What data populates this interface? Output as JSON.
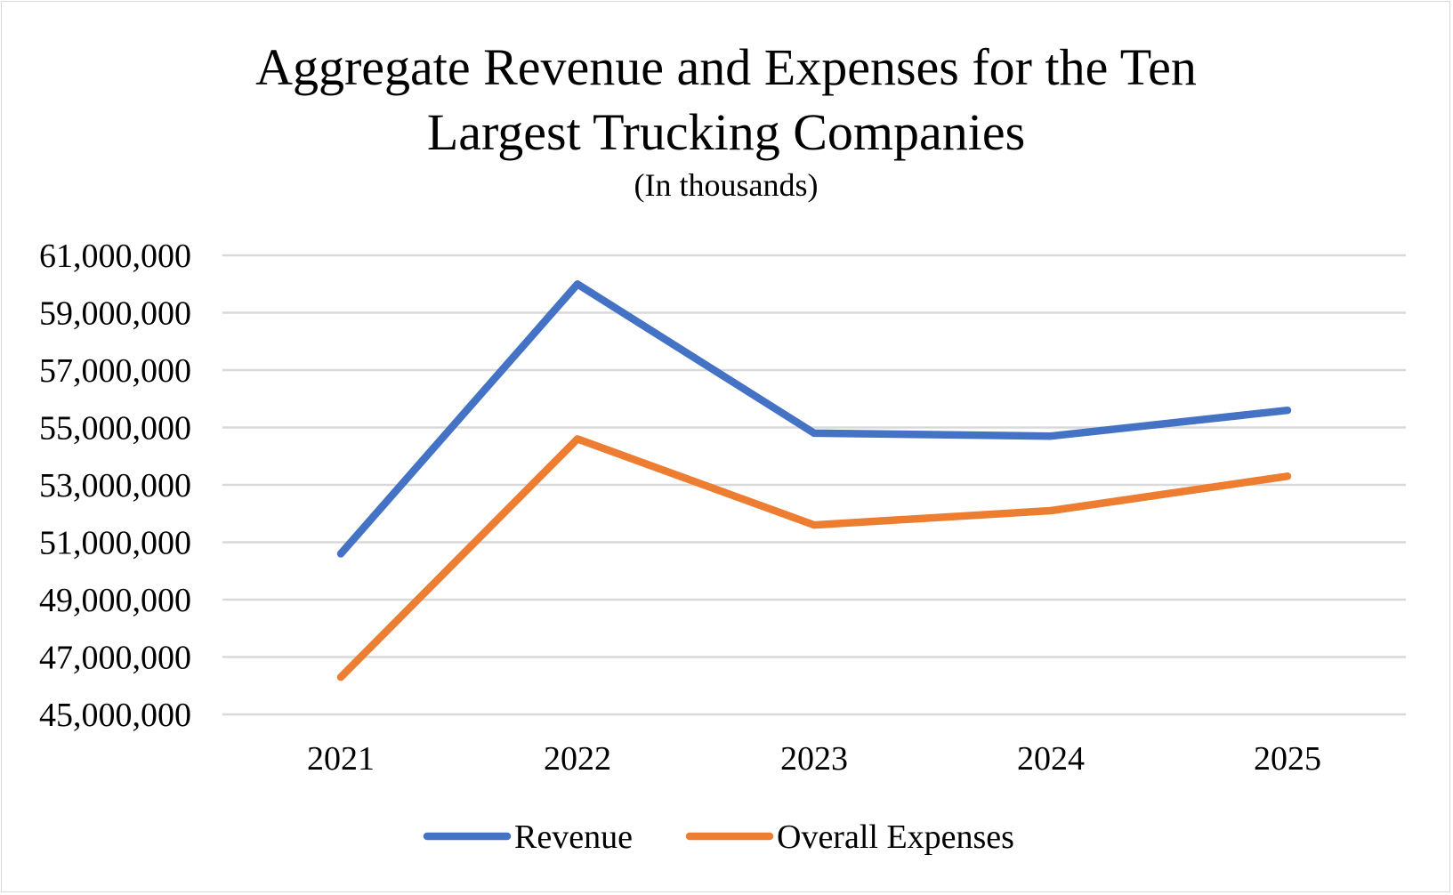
{
  "chart_data": {
    "type": "line",
    "title_lines": [
      "Aggregate Revenue and Expenses for the Ten",
      "Largest Trucking Companies"
    ],
    "subtitle": "(In thousands)",
    "xlabel": "",
    "ylabel": "",
    "categories": [
      "2021",
      "2022",
      "2023",
      "2024",
      "2025"
    ],
    "y_ticks": [
      "45,000,000",
      "47,000,000",
      "49,000,000",
      "51,000,000",
      "53,000,000",
      "55,000,000",
      "57,000,000",
      "59,000,000",
      "61,000,000"
    ],
    "ylim": [
      45000000,
      61000000
    ],
    "grid": true,
    "legend_position": "bottom",
    "series": [
      {
        "name": "Revenue",
        "color": "#4472c4",
        "values": [
          50600000,
          60000000,
          54800000,
          54700000,
          55600000
        ]
      },
      {
        "name": "Overall Expenses",
        "color": "#ed7d31",
        "values": [
          46300000,
          54600000,
          51600000,
          52100000,
          53300000
        ]
      }
    ]
  }
}
